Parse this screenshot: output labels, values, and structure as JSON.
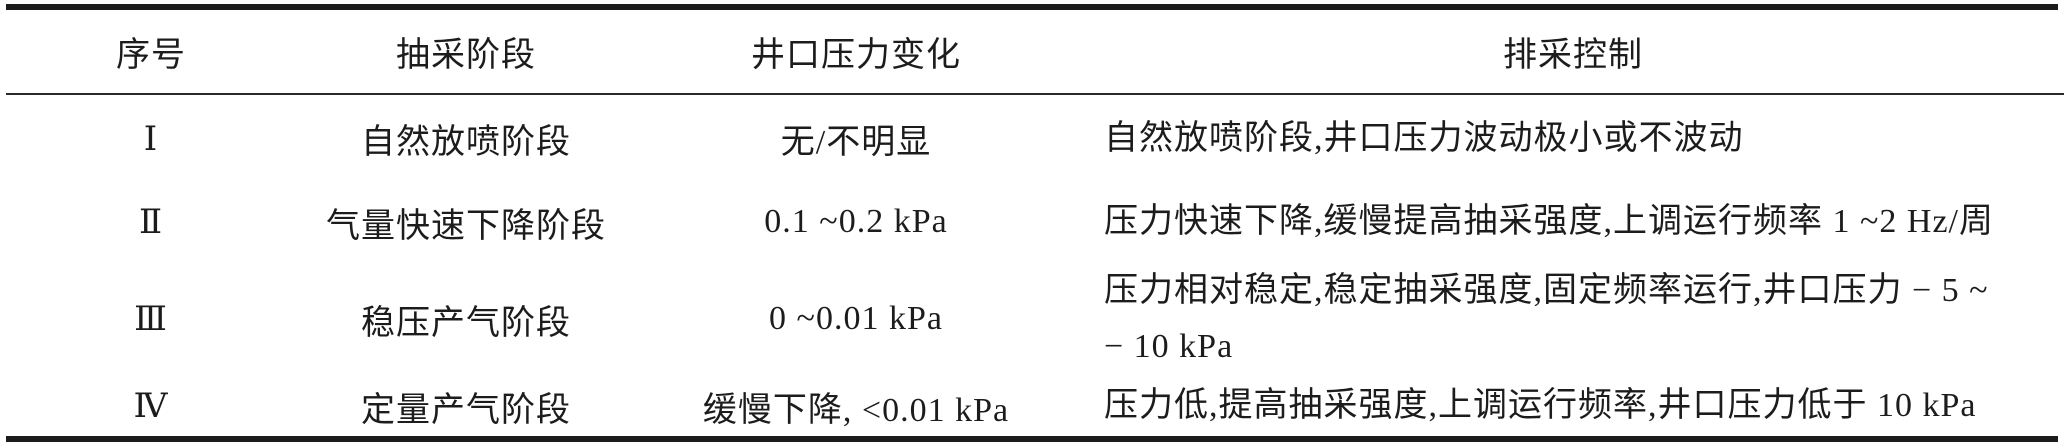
{
  "colors": {
    "rule": "#1c1c1c",
    "text": "#1c1c1c",
    "background": "#ffffff"
  },
  "table": {
    "headers": {
      "seq": "序号",
      "stage": "抽采阶段",
      "pressure": "井口压力变化",
      "control": "排采控制"
    },
    "rows": [
      {
        "seq": "Ⅰ",
        "stage": "自然放喷阶段",
        "pressure": "无/不明显",
        "control": "自然放喷阶段,井口压力波动极小或不波动",
        "control_line2": ""
      },
      {
        "seq": "Ⅱ",
        "stage": "气量快速下降阶段",
        "pressure": "0.1 ~0.2 kPa",
        "control": "压力快速下降,缓慢提高抽采强度,上调运行频率 1 ~2 Hz/周",
        "control_line2": ""
      },
      {
        "seq": "Ⅲ",
        "stage": "稳压产气阶段",
        "pressure": "0 ~0.01 kPa",
        "control": "压力相对稳定,稳定抽采强度,固定频率运行,井口压力 − 5 ~",
        "control_line2": "− 10 kPa"
      },
      {
        "seq": "Ⅳ",
        "stage": "定量产气阶段",
        "pressure": "缓慢下降, <0.01 kPa",
        "control": "压力低,提高抽采强度,上调运行频率,井口压力低于 10 kPa",
        "control_line2": ""
      }
    ]
  }
}
